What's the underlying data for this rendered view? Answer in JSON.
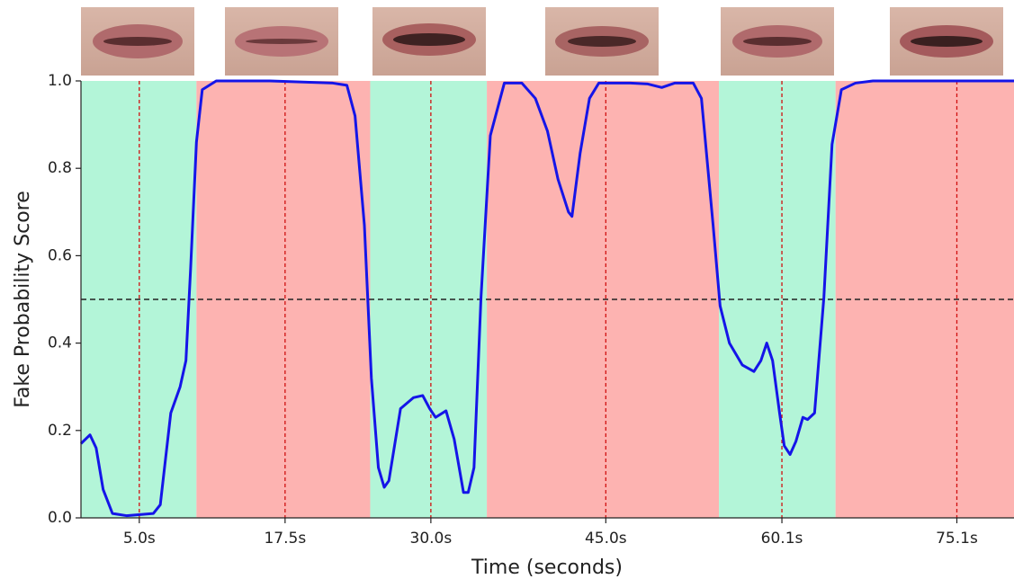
{
  "chart_data": {
    "type": "line",
    "xlabel": "Time (seconds)",
    "ylabel": "Fake Probability Score",
    "xlim": [
      0,
      80
    ],
    "ylim": [
      0,
      1
    ],
    "xticks": [
      {
        "value": 5.0,
        "label": "5.0s"
      },
      {
        "value": 17.5,
        "label": "17.5s"
      },
      {
        "value": 30.0,
        "label": "30.0s"
      },
      {
        "value": 45.0,
        "label": "45.0s"
      },
      {
        "value": 60.1,
        "label": "60.1s"
      },
      {
        "value": 75.1,
        "label": "75.1s"
      }
    ],
    "yticks": [
      {
        "value": 0,
        "label": "0.0"
      },
      0.2,
      0.4,
      0.6,
      0.8,
      {
        "value": 1,
        "label": "1.0"
      }
    ],
    "threshold": 0.5,
    "regions": [
      {
        "start": 0,
        "end": 9.9,
        "color": "#b3f5d8"
      },
      {
        "start": 9.9,
        "end": 24.8,
        "color": "#fdb3b1"
      },
      {
        "start": 24.8,
        "end": 34.8,
        "color": "#b3f5d8"
      },
      {
        "start": 34.8,
        "end": 54.7,
        "color": "#fdb3b1"
      },
      {
        "start": 54.7,
        "end": 64.7,
        "color": "#b3f5d8"
      },
      {
        "start": 64.7,
        "end": 80,
        "color": "#fdb3b1"
      }
    ],
    "series": [
      {
        "color": "#1515e8",
        "x": [
          0,
          0.77,
          1.3,
          1.9,
          2.7,
          3.9,
          6.2,
          6.8,
          7.7,
          8.5,
          9.0,
          9.4,
          9.9,
          10.4,
          11.6,
          16.2,
          21.6,
          22.8,
          23.5,
          24.3,
          24.9,
          25.5,
          26.0,
          26.4,
          27.4,
          28.5,
          29.3,
          29.9,
          30.4,
          31.3,
          32.0,
          32.8,
          33.2,
          33.7,
          34.3,
          35.1,
          36.3,
          37.8,
          38.96,
          40.0,
          40.9,
          41.8,
          42.1,
          42.8,
          43.6,
          44.4,
          47.1,
          48.6,
          49.8,
          50.9,
          52.5,
          53.2,
          54.2,
          54.8,
          55.6,
          56.7,
          57.7,
          58.3,
          58.8,
          59.3,
          59.9,
          60.3,
          60.8,
          61.3,
          61.9,
          62.3,
          62.9,
          63.7,
          64.4,
          65.2,
          66.4,
          67.9,
          80
        ],
        "values": [
          0.17,
          0.19,
          0.16,
          0.065,
          0.01,
          0.005,
          0.01,
          0.03,
          0.24,
          0.3,
          0.36,
          0.57,
          0.86,
          0.98,
          1.0,
          1.0,
          0.995,
          0.99,
          0.92,
          0.67,
          0.32,
          0.115,
          0.07,
          0.085,
          0.25,
          0.275,
          0.28,
          0.25,
          0.23,
          0.245,
          0.18,
          0.058,
          0.058,
          0.115,
          0.505,
          0.875,
          0.995,
          0.995,
          0.96,
          0.885,
          0.775,
          0.7,
          0.69,
          0.835,
          0.96,
          0.995,
          0.995,
          0.993,
          0.985,
          0.995,
          0.995,
          0.96,
          0.67,
          0.485,
          0.4,
          0.35,
          0.335,
          0.36,
          0.4,
          0.36,
          0.24,
          0.165,
          0.145,
          0.175,
          0.23,
          0.225,
          0.24,
          0.505,
          0.855,
          0.98,
          0.995,
          1.0,
          1.0
        ]
      }
    ]
  }
}
